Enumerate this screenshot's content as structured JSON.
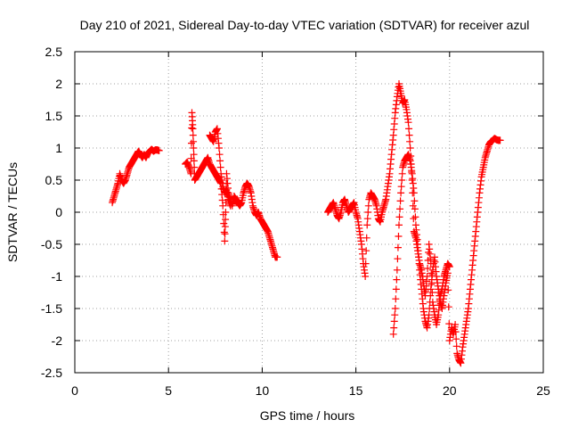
{
  "chart_data": {
    "type": "scatter",
    "title": "Day 210 of 2021, Sidereal Day-to-day VTEC variation (SDTVAR) for receiver azul",
    "xlabel": "GPS time / hours",
    "ylabel": "SDTVAR / TECUs",
    "xlim": [
      0,
      25
    ],
    "ylim": [
      -2.5,
      2.5
    ],
    "xticks": [
      0,
      5,
      10,
      15,
      20,
      25
    ],
    "xtick_labels": [
      "0",
      "5",
      "10",
      "15",
      "20",
      "25"
    ],
    "yticks": [
      -2.5,
      -2,
      -1.5,
      -1,
      -0.5,
      0,
      0.5,
      1,
      1.5,
      2,
      2.5
    ],
    "ytick_labels": [
      "-2.5",
      "-2",
      "-1.5",
      "-1",
      "-0.5",
      "0",
      "0.5",
      "1",
      "1.5",
      "2",
      "2.5"
    ],
    "grid": true,
    "marker": "+",
    "color": "#ff0000",
    "series": [
      {
        "name": "SDTVAR",
        "x": [
          2.0,
          2.1,
          2.2,
          2.3,
          2.4,
          2.5,
          2.6,
          2.7,
          2.8,
          2.9,
          3.0,
          3.1,
          3.2,
          3.3,
          3.4,
          3.5,
          3.6,
          3.7,
          3.8,
          3.9,
          4.0,
          4.1,
          4.2,
          4.3,
          4.4,
          4.5,
          5.9,
          6.0,
          6.1,
          6.2,
          6.25,
          6.3,
          6.35,
          6.4,
          6.5,
          6.6,
          6.7,
          6.8,
          6.9,
          7.0,
          7.1,
          7.2,
          7.3,
          7.4,
          7.5,
          7.6,
          7.7,
          7.8,
          7.9,
          8.0,
          8.05,
          8.1,
          8.2,
          8.3,
          8.4,
          8.5,
          8.6,
          8.7,
          8.8,
          8.9,
          9.0,
          9.1,
          9.2,
          9.3,
          9.4,
          9.5,
          9.6,
          9.7,
          9.8,
          9.9,
          10.0,
          10.1,
          10.2,
          10.3,
          10.4,
          10.5,
          10.6,
          10.7,
          10.8,
          7.2,
          7.3,
          7.4,
          7.5,
          7.6,
          7.7,
          7.8,
          7.9,
          8.0,
          8.1,
          8.2,
          8.3,
          13.5,
          13.6,
          13.7,
          13.8,
          13.9,
          14.0,
          14.1,
          14.2,
          14.3,
          14.4,
          14.5,
          14.6,
          14.7,
          14.8,
          14.9,
          15.0,
          15.1,
          15.2,
          15.3,
          15.4,
          15.5,
          15.6,
          15.7,
          15.8,
          15.9,
          16.0,
          16.1,
          16.2,
          16.3,
          16.4,
          16.5,
          16.6,
          16.7,
          16.8,
          16.9,
          17.0,
          17.1,
          17.2,
          17.3,
          17.4,
          17.5,
          17.6,
          17.7,
          17.8,
          17.9,
          18.0,
          18.1,
          18.2,
          18.3,
          18.4,
          18.5,
          18.6,
          18.7,
          18.8,
          18.9,
          19.0,
          19.1,
          19.2,
          19.3,
          19.4,
          19.5,
          19.6,
          19.7,
          19.8,
          19.9,
          20.0,
          17.0,
          17.1,
          17.2,
          17.3,
          17.4,
          17.5,
          17.6,
          17.7,
          17.8,
          17.9,
          18.0,
          18.1,
          18.2,
          18.3,
          18.4,
          18.5,
          18.6,
          18.7,
          18.8,
          18.9,
          19.0,
          19.1,
          19.2,
          19.3,
          19.4,
          19.5,
          19.6,
          19.7,
          19.8,
          19.9,
          20.0,
          20.1,
          20.2,
          20.3,
          20.4,
          20.5,
          20.6,
          20.7,
          20.8,
          20.9,
          21.0,
          21.1,
          21.2,
          21.3,
          21.4,
          21.5,
          21.6,
          21.7,
          21.8,
          21.9,
          22.0,
          22.1,
          22.2,
          22.3,
          22.4,
          22.5,
          22.6,
          22.7
        ],
        "y": [
          0.15,
          0.25,
          0.35,
          0.45,
          0.6,
          0.5,
          0.45,
          0.5,
          0.6,
          0.7,
          0.75,
          0.8,
          0.85,
          0.9,
          0.95,
          0.9,
          0.85,
          0.9,
          0.85,
          0.92,
          0.95,
          0.98,
          0.95,
          0.97,
          0.97,
          0.96,
          0.75,
          0.78,
          0.7,
          0.6,
          1.55,
          1.3,
          0.9,
          0.5,
          0.55,
          0.6,
          0.65,
          0.7,
          0.75,
          0.8,
          0.85,
          0.75,
          0.7,
          0.65,
          0.6,
          0.55,
          0.5,
          0.45,
          0.1,
          -0.45,
          0.0,
          0.6,
          0.3,
          0.2,
          0.1,
          0.25,
          0.2,
          0.15,
          0.1,
          0.15,
          0.3,
          0.4,
          0.45,
          0.4,
          0.3,
          0.1,
          0.0,
          -0.05,
          0.0,
          -0.1,
          -0.15,
          -0.2,
          -0.25,
          -0.3,
          -0.4,
          -0.5,
          -0.6,
          -0.7,
          -0.7,
          1.2,
          1.15,
          1.1,
          1.25,
          1.3,
          1.0,
          0.6,
          0.4,
          0.3,
          0.35,
          0.2,
          0.1,
          0.0,
          0.05,
          0.1,
          0.15,
          0.05,
          -0.05,
          -0.1,
          0.0,
          0.15,
          0.2,
          0.1,
          0.0,
          0.05,
          0.1,
          0.15,
          0.0,
          -0.1,
          -0.3,
          -0.5,
          -0.8,
          -1.0,
          -0.2,
          0.2,
          0.3,
          0.25,
          0.2,
          0.1,
          -0.1,
          -0.15,
          0.0,
          0.1,
          0.2,
          0.4,
          0.6,
          0.9,
          1.2,
          1.55,
          1.8,
          2.0,
          1.85,
          1.7,
          1.75,
          1.6,
          1.4,
          1.0,
          0.5,
          -0.3,
          -0.4,
          -0.6,
          -0.8,
          -0.9,
          -1.1,
          -1.3,
          -1.0,
          -0.5,
          -0.8,
          -1.4,
          -1.6,
          -1.75,
          -1.6,
          -1.3,
          -1.2,
          -1.0,
          -0.9,
          -0.8,
          -0.85,
          -1.9,
          -1.5,
          -0.9,
          -0.2,
          0.3,
          0.7,
          0.8,
          0.85,
          0.9,
          0.8,
          0.6,
          0.3,
          -0.2,
          -0.5,
          -0.9,
          -1.2,
          -1.5,
          -1.7,
          -1.8,
          -1.6,
          -1.2,
          -0.9,
          -0.7,
          -1.0,
          -1.2,
          -1.4,
          -1.5,
          -1.3,
          -1.1,
          -0.95,
          -2.0,
          -1.8,
          -1.9,
          -1.75,
          -2.2,
          -2.3,
          -2.35,
          -2.1,
          -1.9,
          -1.7,
          -1.5,
          -1.2,
          -0.9,
          -0.6,
          -0.3,
          0.0,
          0.3,
          0.55,
          0.7,
          0.85,
          0.95,
          1.05,
          1.1,
          1.12,
          1.15,
          1.13,
          1.12,
          1.12
        ]
      }
    ]
  }
}
